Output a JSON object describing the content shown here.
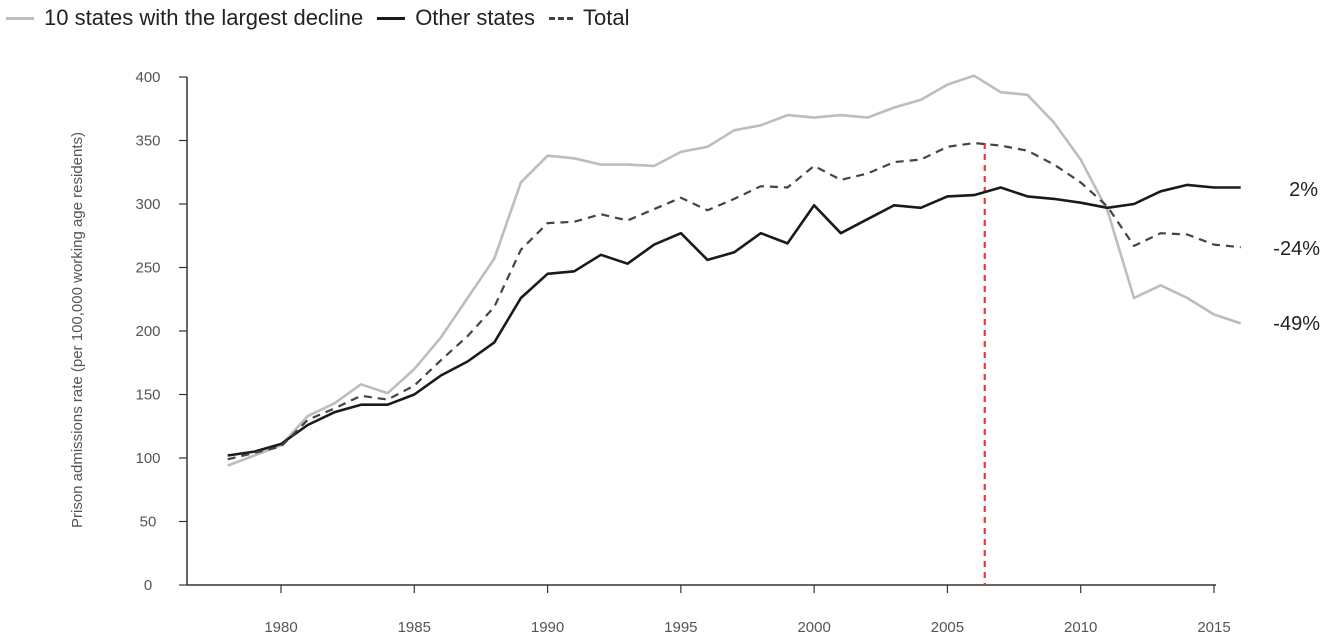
{
  "legend": {
    "items": [
      {
        "label": "10 states with the largest decline",
        "color": "#bdbdbd",
        "style": "solid"
      },
      {
        "label": "Other states",
        "color": "#1a1a1a",
        "style": "solid"
      },
      {
        "label": "Total",
        "color": "#444444",
        "style": "dashed"
      }
    ]
  },
  "chart_data": {
    "type": "line",
    "title": "",
    "xlabel": "",
    "ylabel": "Prison admissions rate (per 100,000 working age residents)",
    "xlim": [
      1976.5,
      2017
    ],
    "ylim": [
      0,
      400
    ],
    "x_ticks": [
      1980,
      1985,
      1990,
      1995,
      2000,
      2005,
      2010,
      2015
    ],
    "y_ticks": [
      0,
      50,
      100,
      150,
      200,
      250,
      300,
      350,
      400
    ],
    "grid": false,
    "legend_position": "top-left",
    "x": [
      1978,
      1979,
      1980,
      1981,
      1982,
      1983,
      1984,
      1985,
      1986,
      1987,
      1988,
      1989,
      1990,
      1991,
      1992,
      1993,
      1994,
      1995,
      1996,
      1997,
      1998,
      1999,
      2000,
      2001,
      2002,
      2003,
      2004,
      2005,
      2006,
      2007,
      2008,
      2009,
      2010,
      2011,
      2012,
      2013,
      2014,
      2015,
      2016
    ],
    "series": [
      {
        "name": "10 states with the largest decline",
        "color": "#bdbdbd",
        "dashed": false,
        "end_label": "-49%",
        "values": [
          94,
          102,
          110,
          133,
          143,
          158,
          151,
          170,
          195,
          226,
          257,
          317,
          338,
          336,
          331,
          331,
          330,
          341,
          345,
          358,
          362,
          370,
          368,
          370,
          368,
          376,
          382,
          394,
          401,
          388,
          386,
          364,
          335,
          295,
          226,
          236,
          226,
          213,
          206
        ]
      },
      {
        "name": "Other states",
        "color": "#1a1a1a",
        "dashed": false,
        "end_label": "2%",
        "values": [
          102,
          105,
          111,
          126,
          136,
          142,
          142,
          150,
          165,
          176,
          191,
          226,
          245,
          247,
          260,
          253,
          268,
          277,
          256,
          262,
          277,
          269,
          299,
          277,
          288,
          299,
          297,
          306,
          307,
          313,
          306,
          304,
          301,
          297,
          300,
          310,
          315,
          313,
          313
        ]
      },
      {
        "name": "Total",
        "color": "#444444",
        "dashed": true,
        "end_label": "-24%",
        "values": [
          99,
          104,
          109,
          130,
          139,
          149,
          146,
          157,
          177,
          196,
          219,
          264,
          285,
          286,
          292,
          287,
          296,
          305,
          295,
          304,
          314,
          313,
          330,
          319,
          324,
          333,
          335,
          345,
          348,
          346,
          342,
          331,
          317,
          298,
          267,
          277,
          276,
          268,
          266
        ]
      }
    ],
    "reference_line": {
      "x": 2006.4,
      "color": "#e53935",
      "dashed": true
    }
  }
}
